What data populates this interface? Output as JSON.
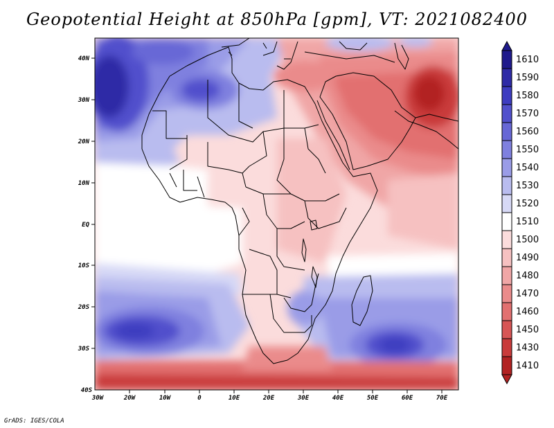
{
  "title": "Geopotential Height at 850hPa [gpm], VT: 2021082400",
  "credit": "GrADS: IGES/COLA",
  "map": {
    "region": "Africa and Middle East",
    "lat_labels": [
      "40N",
      "30N",
      "20N",
      "10N",
      "EQ",
      "10S",
      "20S",
      "30S",
      "40S"
    ],
    "lon_labels": [
      "30W",
      "20W",
      "10W",
      "0",
      "10E",
      "20E",
      "30E",
      "40E",
      "50E",
      "60E",
      "70E"
    ]
  },
  "colorbar": {
    "levels": [
      "1610",
      "1590",
      "1580",
      "1570",
      "1560",
      "1550",
      "1540",
      "1530",
      "1520",
      "1510",
      "1500",
      "1490",
      "1480",
      "1470",
      "1460",
      "1450",
      "1430",
      "1410"
    ],
    "colors": [
      "#1f1a8c",
      "#2e2aa6",
      "#3d3cc0",
      "#5150cc",
      "#6767d6",
      "#7f80df",
      "#9a9ce7",
      "#b9bcef",
      "#d7d9f6",
      "#ffffff",
      "#fbdcdc",
      "#f6c1c1",
      "#f0a6a6",
      "#ea8b8b",
      "#e27070",
      "#d75555",
      "#c93b3b",
      "#b22222"
    ]
  }
}
